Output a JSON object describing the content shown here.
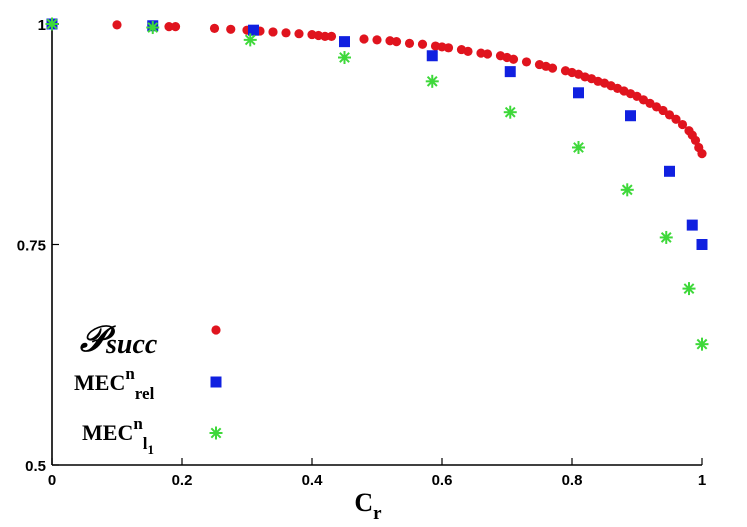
{
  "chart_data": {
    "type": "scatter",
    "title": "",
    "xlabel": "C",
    "xlabel_sub": "r",
    "ylabel": "",
    "xlim": [
      0,
      1
    ],
    "ylim": [
      0.5,
      1.0
    ],
    "x_ticks": [
      "0",
      "0.2",
      "0.4",
      "0.6",
      "0.8",
      "1"
    ],
    "y_ticks": [
      "0.5",
      "0.75",
      "1"
    ],
    "legend_position": "bottom-left",
    "series": [
      {
        "name": "P_succ",
        "legend_main": "𝒫",
        "legend_sub": "succ",
        "marker": "circle",
        "color": "#e0141e",
        "points": [
          [
            0.0,
            1.0
          ],
          [
            0.1,
            0.999
          ],
          [
            0.155,
            0.998
          ],
          [
            0.18,
            0.997
          ],
          [
            0.19,
            0.997
          ],
          [
            0.25,
            0.995
          ],
          [
            0.275,
            0.994
          ],
          [
            0.3,
            0.993
          ],
          [
            0.32,
            0.992
          ],
          [
            0.34,
            0.991
          ],
          [
            0.36,
            0.99
          ],
          [
            0.38,
            0.989
          ],
          [
            0.4,
            0.988
          ],
          [
            0.41,
            0.987
          ],
          [
            0.42,
            0.986
          ],
          [
            0.43,
            0.986
          ],
          [
            0.48,
            0.983
          ],
          [
            0.5,
            0.982
          ],
          [
            0.52,
            0.981
          ],
          [
            0.53,
            0.98
          ],
          [
            0.55,
            0.978
          ],
          [
            0.57,
            0.977
          ],
          [
            0.59,
            0.975
          ],
          [
            0.6,
            0.974
          ],
          [
            0.61,
            0.973
          ],
          [
            0.63,
            0.971
          ],
          [
            0.64,
            0.969
          ],
          [
            0.66,
            0.967
          ],
          [
            0.67,
            0.966
          ],
          [
            0.69,
            0.964
          ],
          [
            0.7,
            0.962
          ],
          [
            0.71,
            0.96
          ],
          [
            0.73,
            0.957
          ],
          [
            0.75,
            0.954
          ],
          [
            0.76,
            0.952
          ],
          [
            0.77,
            0.95
          ],
          [
            0.79,
            0.947
          ],
          [
            0.8,
            0.945
          ],
          [
            0.81,
            0.943
          ],
          [
            0.82,
            0.94
          ],
          [
            0.83,
            0.938
          ],
          [
            0.84,
            0.935
          ],
          [
            0.85,
            0.933
          ],
          [
            0.86,
            0.93
          ],
          [
            0.87,
            0.927
          ],
          [
            0.88,
            0.924
          ],
          [
            0.89,
            0.921
          ],
          [
            0.9,
            0.918
          ],
          [
            0.91,
            0.914
          ],
          [
            0.92,
            0.91
          ],
          [
            0.93,
            0.906
          ],
          [
            0.94,
            0.902
          ],
          [
            0.95,
            0.897
          ],
          [
            0.96,
            0.892
          ],
          [
            0.97,
            0.886
          ],
          [
            0.98,
            0.879
          ],
          [
            0.985,
            0.874
          ],
          [
            0.99,
            0.868
          ],
          [
            0.995,
            0.86
          ],
          [
            1.0,
            0.853
          ]
        ]
      },
      {
        "name": "MEC^n_rel",
        "legend_main": "MEC",
        "legend_sup": "n",
        "legend_sub": "rel",
        "marker": "square",
        "color": "#1020e0",
        "points": [
          [
            0.0,
            1.0
          ],
          [
            0.155,
            0.998
          ],
          [
            0.31,
            0.993
          ],
          [
            0.45,
            0.98
          ],
          [
            0.585,
            0.964
          ],
          [
            0.705,
            0.946
          ],
          [
            0.81,
            0.922
          ],
          [
            0.89,
            0.896
          ],
          [
            0.95,
            0.833
          ],
          [
            0.985,
            0.772
          ],
          [
            1.0,
            0.75
          ]
        ]
      },
      {
        "name": "MEC^n_l1",
        "legend_main": "MEC",
        "legend_sup": "n",
        "legend_sub": "l",
        "legend_subsub": "1",
        "marker": "asterisk",
        "color": "#3ed83a",
        "points": [
          [
            0.0,
            1.0
          ],
          [
            0.155,
            0.996
          ],
          [
            0.305,
            0.982
          ],
          [
            0.45,
            0.962
          ],
          [
            0.585,
            0.935
          ],
          [
            0.705,
            0.9
          ],
          [
            0.81,
            0.86
          ],
          [
            0.885,
            0.812
          ],
          [
            0.945,
            0.758
          ],
          [
            0.98,
            0.7
          ],
          [
            1.0,
            0.637
          ]
        ]
      }
    ]
  }
}
